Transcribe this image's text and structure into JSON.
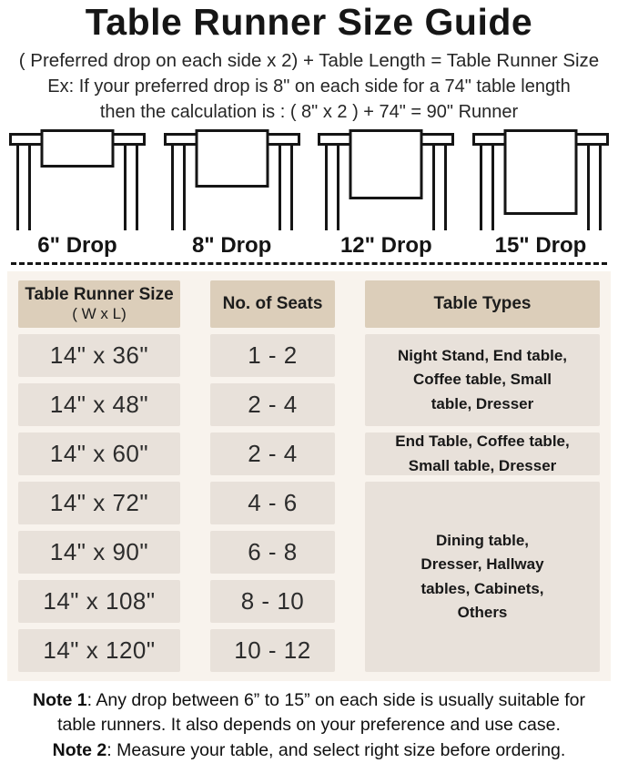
{
  "title": "Table Runner Size Guide",
  "formula": "( Preferred drop on each side x 2) + Table Length = Table Runner Size",
  "example": {
    "line1": "Ex: If your preferred drop is 8\" on each side for a 74\" table length",
    "line2": "then the calculation is : ( 8\" x 2 ) + 74\" = 90\" Runner"
  },
  "drops": [
    {
      "label": "6\" Drop"
    },
    {
      "label": "8\" Drop"
    },
    {
      "label": "12\" Drop"
    },
    {
      "label": "15\" Drop"
    }
  ],
  "size_table": {
    "headers": {
      "runner_size_line1": "Table Runner Size",
      "runner_size_line2": "( W x L)",
      "seats": "No. of Seats",
      "types": "Table Types"
    },
    "rows": [
      {
        "size": "14\" x 36\"",
        "seats": "1 - 2"
      },
      {
        "size": "14\" x 48\"",
        "seats": "2 - 4"
      },
      {
        "size": "14\" x 60\"",
        "seats": "2 - 4"
      },
      {
        "size": "14\" x 72\"",
        "seats": "4 - 6"
      },
      {
        "size": "14\" x 90\"",
        "seats": "6 - 8"
      },
      {
        "size": "14\" x 108\"",
        "seats": "8 - 10"
      },
      {
        "size": "14\" x 120\"",
        "seats": "10 - 12"
      }
    ],
    "type_groups": [
      {
        "text": "Night Stand, End table,\nCoffee table, Small\ntable, Dresser"
      },
      {
        "text": "End Table, Coffee table,\nSmall table, Dresser"
      },
      {
        "text": "Dining table,\nDresser, Hallway\ntables, Cabinets,\nOthers"
      }
    ]
  },
  "notes": [
    {
      "label": "Note 1",
      "text": ": Any drop between 6” to 15” on each side is usually suitable for\ntable runners. It also depends on your preference and use case."
    },
    {
      "label": "Note 2",
      "text": ": Measure your table, and select right size before ordering."
    }
  ],
  "colors": {
    "header_bg": "#dcceba",
    "cell_bg": "#e8e1da",
    "panel_bg": "#f8f3ed",
    "ink": "#1d1d1d"
  }
}
